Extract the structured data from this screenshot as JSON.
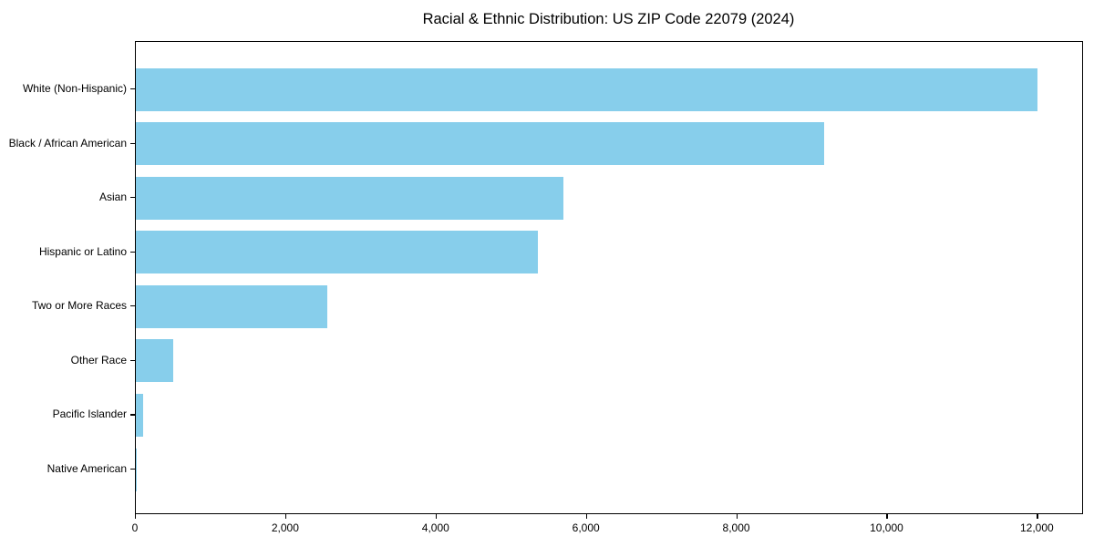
{
  "title": "Racial & Ethnic Distribution: US ZIP Code 22079 (2024)",
  "chart_data": {
    "type": "bar",
    "orientation": "horizontal",
    "title": "Racial & Ethnic Distribution: US ZIP Code 22079 (2024)",
    "categories": [
      "White (Non-Hispanic)",
      "Black / African American",
      "Asian",
      "Hispanic or Latino",
      "Two or More Races",
      "Other Race",
      "Pacific Islander",
      "Native American"
    ],
    "values": [
      11990,
      9160,
      5690,
      5350,
      2550,
      500,
      100,
      10
    ],
    "xlabel": "",
    "ylabel": "",
    "xlim": [
      0,
      12590
    ],
    "x_ticks": [
      0,
      2000,
      4000,
      6000,
      8000,
      10000,
      12000
    ],
    "x_tick_labels": [
      "0",
      "2,000",
      "4,000",
      "6,000",
      "8,000",
      "10,000",
      "12,000"
    ],
    "bar_color": "#87CEEB",
    "axis_color": "#000000",
    "text_color": "#000000",
    "background_color": "#ffffff",
    "grid": false,
    "legend": null
  }
}
